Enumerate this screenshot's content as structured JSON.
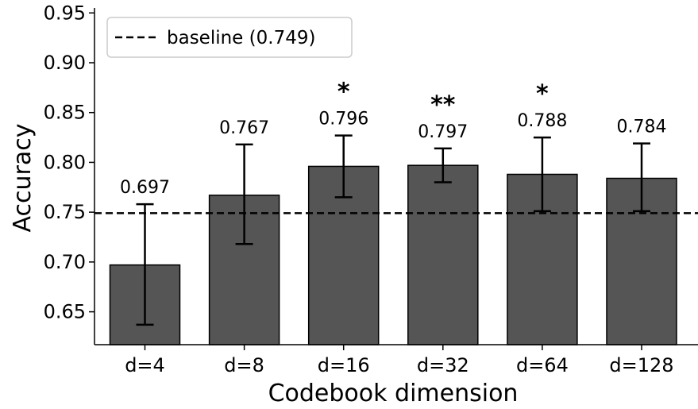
{
  "chart_data": {
    "type": "bar",
    "categories": [
      "d=4",
      "d=8",
      "d=16",
      "d=32",
      "d=64",
      "d=128"
    ],
    "values": [
      0.697,
      0.767,
      0.796,
      0.797,
      0.788,
      0.784
    ],
    "value_labels": [
      "0.697",
      "0.767",
      "0.796",
      "0.797",
      "0.788",
      "0.784"
    ],
    "error_low": [
      0.637,
      0.718,
      0.765,
      0.78,
      0.751,
      0.751
    ],
    "error_high": [
      0.758,
      0.818,
      0.827,
      0.814,
      0.825,
      0.819
    ],
    "significance": [
      "",
      "",
      "*",
      "**",
      "*",
      ""
    ],
    "baseline": {
      "value": 0.749,
      "label": "baseline (0.749)"
    },
    "xlabel": "Codebook dimension",
    "ylabel": "Accuracy",
    "ylim": [
      0.617,
      0.955
    ],
    "yticks": [
      0.65,
      0.7,
      0.75,
      0.8,
      0.85,
      0.9,
      0.95
    ],
    "ytick_labels": [
      "0.65",
      "0.70",
      "0.75",
      "0.80",
      "0.85",
      "0.90",
      "0.95"
    ],
    "legend_position": "top-left",
    "grid": false,
    "colors": {
      "bar": "#555555",
      "bar_edge": "#000000",
      "baseline": "#000000",
      "error": "#000000"
    }
  }
}
